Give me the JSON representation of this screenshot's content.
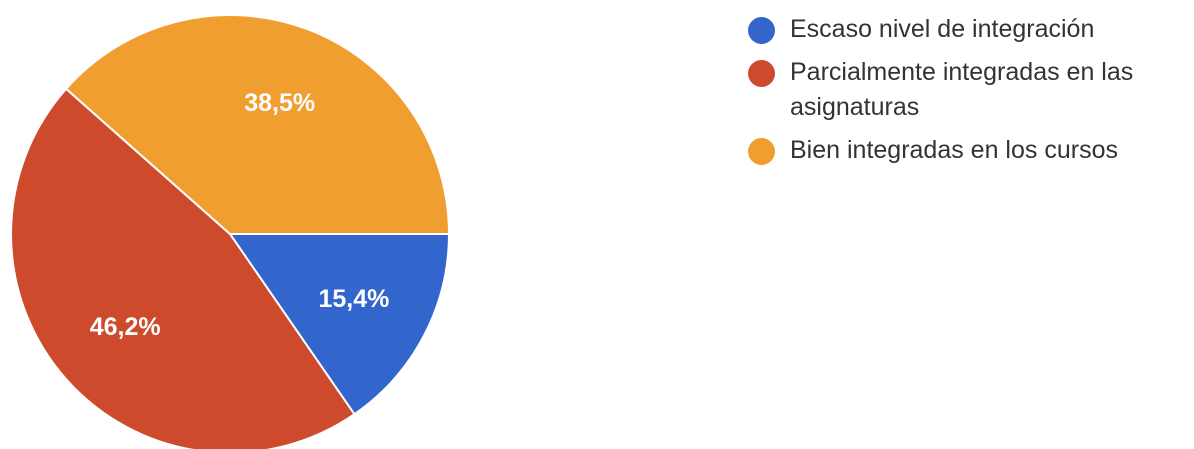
{
  "chart_data": {
    "type": "pie",
    "title": "",
    "categories": [
      "Escaso nivel de integración",
      "Parcialmente integradas en las asignaturas",
      "Bien integradas en los cursos"
    ],
    "values": [
      15.4,
      46.2,
      38.5
    ],
    "value_labels": [
      "15,4%",
      "46,2%",
      "38,5%"
    ],
    "colors": [
      "#3366cc",
      "#cd4a2d",
      "#f09e30"
    ],
    "start_angle_deg": 0,
    "direction": "clockwise",
    "legend_position": "right",
    "legend": [
      {
        "label": "Escaso nivel de integración",
        "color": "#3366cc"
      },
      {
        "label": "Parcialmente integradas en las asignaturas",
        "color": "#cd4a2d"
      },
      {
        "label": "Bien integradas en los cursos",
        "color": "#f09e30"
      }
    ]
  }
}
